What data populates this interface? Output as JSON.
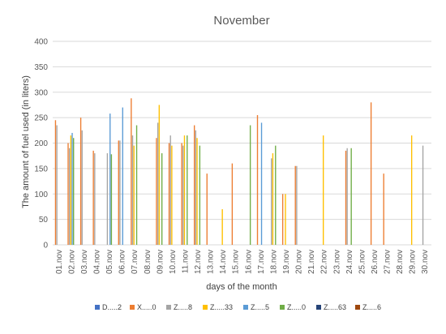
{
  "chart_data": {
    "type": "bar",
    "title": "November",
    "xlabel": "days of the month",
    "ylabel": "The amount of fuel used (in liters)",
    "ylim": [
      0,
      400
    ],
    "yticks": [
      0,
      50,
      100,
      150,
      200,
      250,
      300,
      350,
      400
    ],
    "grid": true,
    "legend_position": "bottom",
    "categories": [
      "01.nov",
      "02.nov",
      "03.nov",
      "04.nov",
      "05.nov",
      "06.nov",
      "07.nov",
      "08.nov",
      "09.nov",
      "10.nov",
      "11.nov",
      "12.nov",
      "13.nov",
      "14.nov",
      "15.nov",
      "16.nov",
      "17.nov",
      "18.nov",
      "19.nov",
      "20.nov",
      "21.nov",
      "22.nov",
      "23.nov",
      "24.nov",
      "25.nov",
      "26.nov",
      "27.nov",
      "28.nov",
      "29.nov",
      "30.nov"
    ],
    "series": [
      {
        "name": "D.....2",
        "color": "#4472C4",
        "values": [
          0,
          0,
          0,
          0,
          0,
          0,
          0,
          0,
          0,
          0,
          0,
          0,
          0,
          0,
          0,
          0,
          0,
          0,
          0,
          0,
          0,
          0,
          0,
          0,
          0,
          0,
          0,
          0,
          0,
          0
        ]
      },
      {
        "name": "X.....0",
        "color": "#ED7D31",
        "values": [
          245,
          200,
          250,
          185,
          0,
          205,
          288,
          0,
          210,
          200,
          200,
          235,
          140,
          0,
          160,
          0,
          255,
          0,
          100,
          155,
          0,
          0,
          0,
          185,
          0,
          280,
          140,
          0,
          0,
          0
        ]
      },
      {
        "name": "Z.....8",
        "color": "#A5A5A5",
        "values": [
          235,
          190,
          225,
          180,
          180,
          205,
          215,
          0,
          240,
          215,
          195,
          225,
          0,
          0,
          0,
          0,
          0,
          170,
          0,
          155,
          0,
          0,
          0,
          190,
          0,
          0,
          0,
          0,
          0,
          195
        ]
      },
      {
        "name": "Z.....33",
        "color": "#FFC000",
        "values": [
          0,
          215,
          0,
          0,
          0,
          0,
          195,
          0,
          275,
          195,
          215,
          210,
          0,
          70,
          0,
          0,
          0,
          180,
          100,
          0,
          0,
          215,
          0,
          0,
          0,
          0,
          0,
          0,
          215,
          0
        ]
      },
      {
        "name": "Z.....5",
        "color": "#5B9BD5",
        "values": [
          0,
          220,
          0,
          0,
          258,
          270,
          0,
          0,
          0,
          0,
          0,
          0,
          0,
          0,
          0,
          0,
          240,
          0,
          0,
          0,
          0,
          0,
          0,
          0,
          0,
          0,
          0,
          0,
          0,
          0
        ]
      },
      {
        "name": "Z.....0",
        "color": "#70AD47",
        "values": [
          0,
          210,
          0,
          0,
          178,
          0,
          235,
          0,
          180,
          0,
          215,
          195,
          0,
          0,
          0,
          235,
          0,
          195,
          0,
          0,
          0,
          0,
          0,
          190,
          0,
          0,
          0,
          0,
          0,
          0
        ]
      },
      {
        "name": "Z.....63",
        "color": "#264478",
        "values": [
          0,
          0,
          0,
          0,
          0,
          0,
          0,
          0,
          0,
          0,
          0,
          0,
          0,
          0,
          0,
          0,
          0,
          0,
          0,
          0,
          0,
          0,
          0,
          0,
          0,
          0,
          0,
          0,
          0,
          0
        ]
      },
      {
        "name": "Z.....6",
        "color": "#9E480E",
        "values": [
          0,
          0,
          0,
          0,
          0,
          0,
          0,
          0,
          0,
          0,
          0,
          0,
          0,
          0,
          0,
          0,
          0,
          0,
          0,
          0,
          0,
          0,
          0,
          0,
          0,
          0,
          0,
          0,
          0,
          0
        ]
      }
    ]
  }
}
